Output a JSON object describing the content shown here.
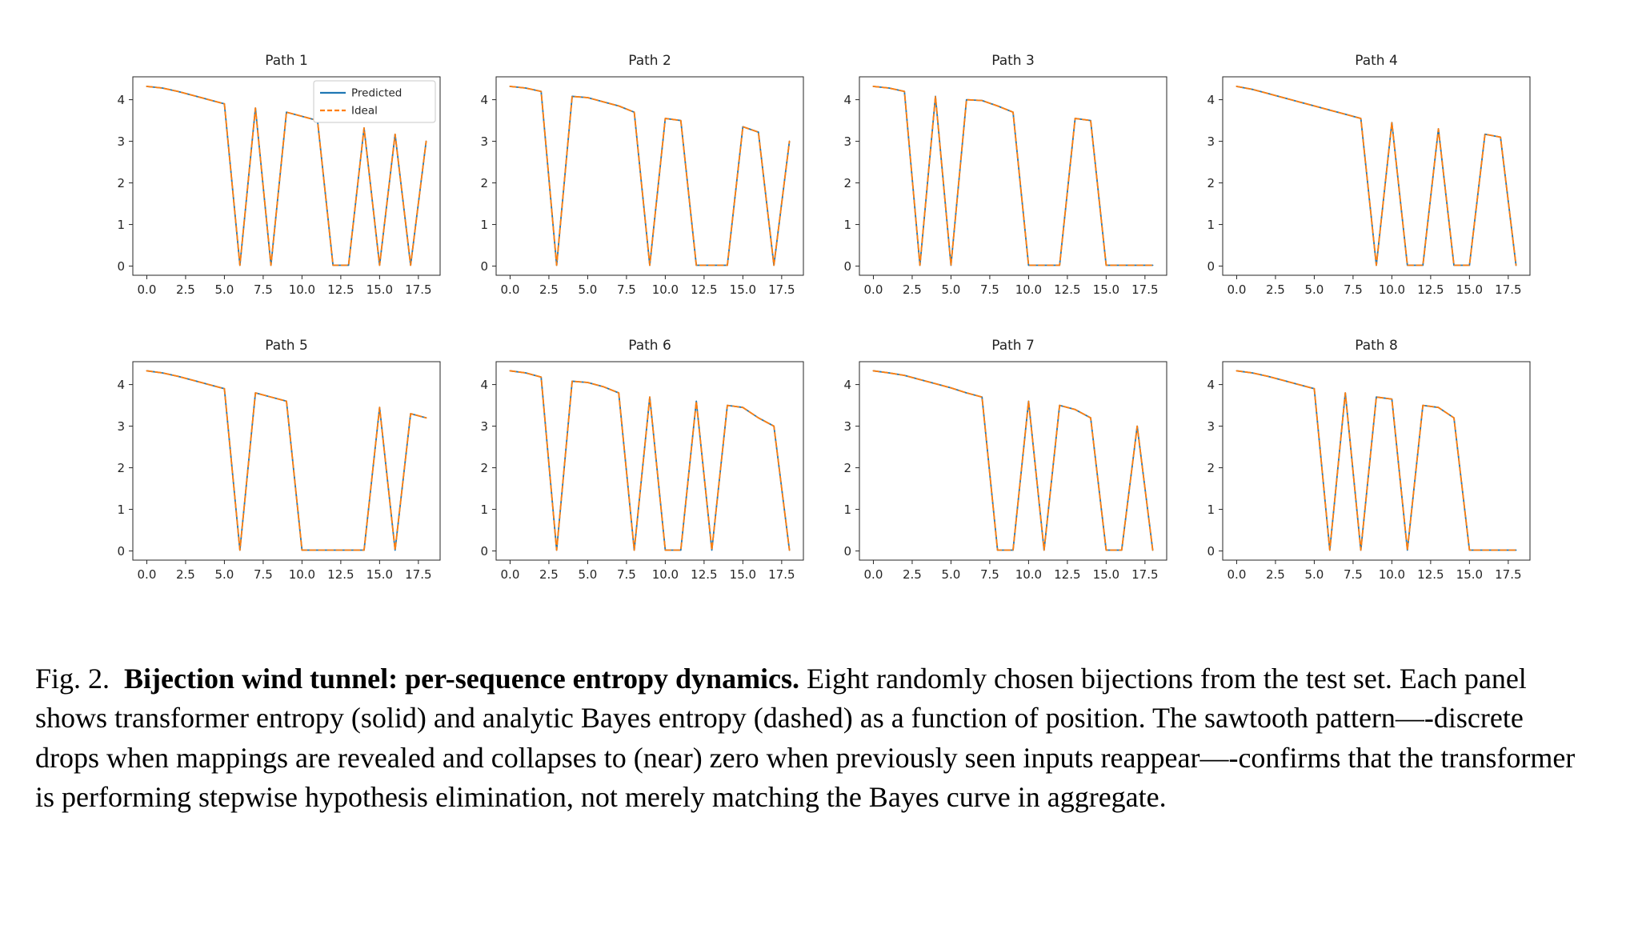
{
  "caption": {
    "prefix": "Fig. 2.",
    "bold": "Bijection wind tunnel: per-sequence entropy dynamics.",
    "rest": "Eight randomly chosen bijections from the test set. Each panel shows transformer entropy (solid) and analytic Bayes entropy (dashed) as a function of position. The sawtooth pattern—-discrete drops when mappings are revealed and collapses to (near) zero when previously seen inputs reappear—-confirms that the transformer is performing stepwise hypothesis elimination, not merely matching the Bayes curve in aggregate."
  },
  "chart_data": {
    "type": "line",
    "layout": "2 rows x 4 columns of small multiples",
    "x": [
      0,
      1,
      2,
      3,
      4,
      5,
      6,
      7,
      8,
      9,
      10,
      11,
      12,
      13,
      14,
      15,
      16,
      17,
      18
    ],
    "xlabel": "",
    "ylabel": "",
    "xlim": [
      -0.9,
      18.9
    ],
    "ylim": [
      -0.22,
      4.55
    ],
    "grid": false,
    "x_ticks": {
      "values": [
        0,
        2.5,
        5,
        7.5,
        10,
        12.5,
        15,
        17.5
      ],
      "labels": [
        "0.0",
        "2.5",
        "5.0",
        "7.5",
        "10.0",
        "12.5",
        "15.0",
        "17.5"
      ]
    },
    "y_ticks": {
      "values": [
        0,
        1,
        2,
        3,
        4
      ],
      "labels": [
        "0",
        "1",
        "2",
        "3",
        "4"
      ]
    },
    "legend": {
      "position": "upper right",
      "shown_only_in_panel": "Path 1",
      "entries": [
        {
          "label": "Predicted",
          "color": "#1f77b4",
          "style": "solid"
        },
        {
          "label": "Ideal",
          "color": "#ff7f0e",
          "style": "dashed"
        }
      ]
    },
    "annotation": "In every panel the Predicted (solid) and Ideal (dashed) curves overlap almost exactly; values below are shared by both series.",
    "charts": [
      {
        "title": "Path 1",
        "values": [
          4.32,
          4.28,
          4.2,
          4.1,
          4.0,
          3.9,
          0.02,
          3.8,
          0.02,
          3.7,
          3.6,
          3.5,
          0.02,
          0.02,
          3.32,
          0.02,
          3.17,
          0.02,
          3.0
        ]
      },
      {
        "title": "Path 2",
        "values": [
          4.32,
          4.28,
          4.2,
          0.02,
          4.08,
          4.05,
          3.95,
          3.85,
          3.7,
          0.02,
          3.55,
          3.5,
          0.02,
          0.02,
          0.02,
          3.35,
          3.22,
          0.02,
          3.0
        ]
      },
      {
        "title": "Path 3",
        "values": [
          4.32,
          4.28,
          4.2,
          0.02,
          4.08,
          0.02,
          4.0,
          3.98,
          3.85,
          3.7,
          0.02,
          0.02,
          0.02,
          3.55,
          3.5,
          0.02,
          0.02,
          0.02,
          0.02
        ]
      },
      {
        "title": "Path 4",
        "values": [
          4.32,
          4.25,
          4.15,
          4.05,
          3.95,
          3.85,
          3.75,
          3.65,
          3.55,
          0.02,
          3.45,
          0.02,
          0.02,
          3.3,
          0.02,
          0.02,
          3.17,
          3.1,
          0.02
        ]
      },
      {
        "title": "Path 5",
        "values": [
          4.33,
          4.28,
          4.2,
          4.1,
          4.0,
          3.9,
          0.02,
          3.8,
          3.7,
          3.6,
          0.02,
          0.02,
          0.02,
          0.02,
          0.02,
          3.45,
          0.02,
          3.3,
          3.2
        ]
      },
      {
        "title": "Path 6",
        "values": [
          4.33,
          4.28,
          4.18,
          0.02,
          4.08,
          4.05,
          3.95,
          3.8,
          0.02,
          3.7,
          0.02,
          0.02,
          3.6,
          0.02,
          3.5,
          3.45,
          3.2,
          3.0,
          0.02
        ]
      },
      {
        "title": "Path 7",
        "values": [
          4.33,
          4.28,
          4.22,
          4.12,
          4.02,
          3.92,
          3.8,
          3.7,
          0.02,
          0.02,
          3.6,
          0.02,
          3.5,
          3.4,
          3.2,
          0.02,
          0.02,
          3.0,
          0.02
        ]
      },
      {
        "title": "Path 8",
        "values": [
          4.33,
          4.28,
          4.2,
          4.1,
          4.0,
          3.9,
          0.02,
          3.8,
          0.02,
          3.7,
          3.65,
          0.02,
          3.5,
          3.45,
          3.2,
          0.02,
          0.02,
          0.02,
          0.02
        ]
      }
    ]
  }
}
